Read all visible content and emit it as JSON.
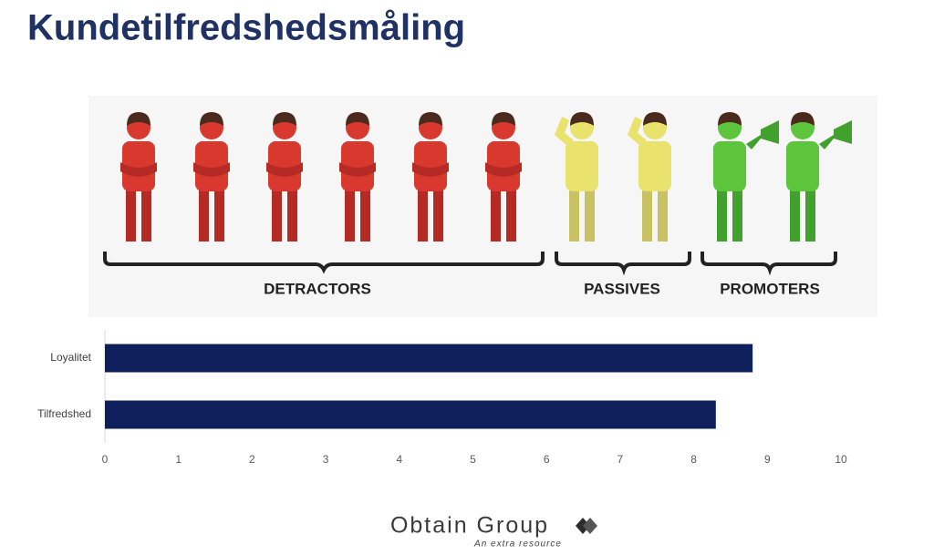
{
  "title": "Kundetilfredshedsmåling",
  "illustration": {
    "labels": [
      "DETRACTORS",
      "PASSIVES",
      "PROMOTERS"
    ]
  },
  "chart_data": {
    "type": "bar",
    "orientation": "horizontal",
    "categories": [
      "Loyalitet",
      "Tilfredshed"
    ],
    "values": [
      8.8,
      8.3
    ],
    "color": "#0f1f5c",
    "xlim": [
      0,
      10
    ],
    "xticks": [
      0,
      1,
      2,
      3,
      4,
      5,
      6,
      7,
      8,
      9,
      10
    ],
    "grid": false
  },
  "logo": {
    "name": "Obtain Group",
    "tagline": "An extra resource"
  }
}
